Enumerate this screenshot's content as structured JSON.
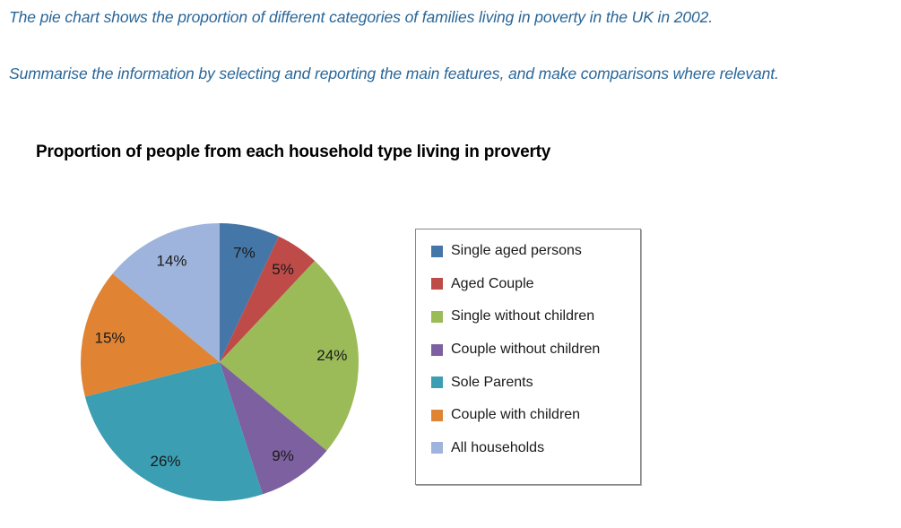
{
  "prompt": {
    "line1": "The pie chart shows the proportion of different categories of families living in poverty in the UK in 2002.",
    "line2": "Summarise the information by selecting and reporting the main features, and make comparisons where relevant."
  },
  "chart_data": {
    "type": "pie",
    "title": "Proportion of people from each household type living in proverty",
    "categories": [
      "Single aged persons",
      "Aged Couple",
      "Single without children",
      "Couple without children",
      "Sole Parents",
      "Couple with children",
      "All households"
    ],
    "values": [
      7,
      5,
      24,
      9,
      26,
      15,
      14
    ],
    "labels": [
      "7%",
      "5%",
      "24%",
      "9%",
      "26%",
      "15%",
      "14%"
    ],
    "colors": [
      "#4576A8",
      "#BE4B48",
      "#9BBB59",
      "#7D60A0",
      "#3B9EB3",
      "#E08434",
      "#9EB4DC"
    ],
    "total": 100,
    "unit": "%",
    "start_angle_deg": 0,
    "direction": "clockwise",
    "legend_position": "right",
    "grid": false
  },
  "style": {
    "prompt_text_color": "#2A6698",
    "chart_title_color": "#000000",
    "data_label_color": "#1A1A1A",
    "legend_text_color": "#1A1A1A",
    "legend_border_color": "#868686",
    "page_background": "#FFFFFF"
  }
}
